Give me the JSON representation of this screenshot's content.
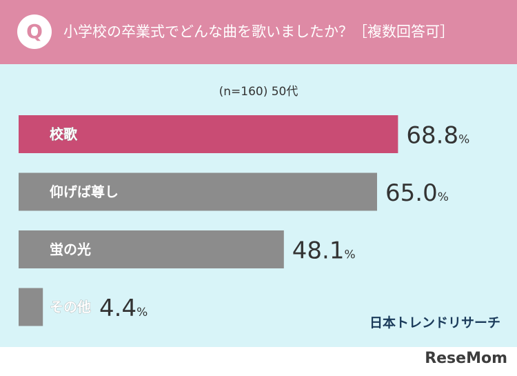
{
  "header": {
    "badge": "Q",
    "question": "小学校の卒業式でどんな曲を歌いましたか？［複数回答可］"
  },
  "sample_label": "(n=160) 50代",
  "brand": "日本トレンドリサーチ",
  "watermark": "ReseMom",
  "colors": {
    "header_bg": "#de8aa5",
    "panel_bg": "#d8f4f8",
    "highlight_bar": "#c94c74",
    "default_bar": "#8c8c8c",
    "value_text": "#333333"
  },
  "chart_data": {
    "type": "bar",
    "orientation": "horizontal",
    "categories": [
      "校歌",
      "仰げば尊し",
      "蛍の光",
      "その他"
    ],
    "values": [
      68.8,
      65.0,
      48.1,
      4.4
    ],
    "value_labels": [
      "68.8",
      "65.0",
      "48.1",
      "4.4"
    ],
    "unit": "%",
    "highlight_index": 0,
    "xlim": [
      0,
      100
    ]
  }
}
